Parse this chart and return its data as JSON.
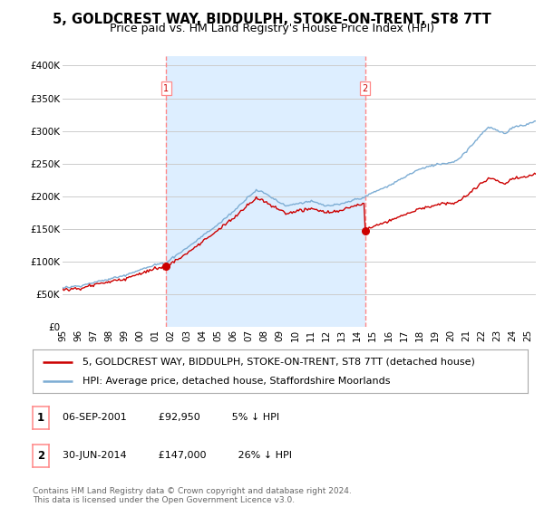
{
  "title": "5, GOLDCREST WAY, BIDDULPH, STOKE-ON-TRENT, ST8 7TT",
  "subtitle": "Price paid vs. HM Land Registry's House Price Index (HPI)",
  "ylabel_ticks": [
    "£0",
    "£50K",
    "£100K",
    "£150K",
    "£200K",
    "£250K",
    "£300K",
    "£350K",
    "£400K"
  ],
  "ytick_values": [
    0,
    50000,
    100000,
    150000,
    200000,
    250000,
    300000,
    350000,
    400000
  ],
  "ylim": [
    0,
    415000
  ],
  "xlim_start": 1995.0,
  "xlim_end": 2025.5,
  "purchase1": {
    "date_x": 2001.67,
    "price": 92950,
    "label": "1"
  },
  "purchase2": {
    "date_x": 2014.5,
    "price": 147000,
    "label": "2"
  },
  "legend_label_red": "5, GOLDCREST WAY, BIDDULPH, STOKE-ON-TRENT, ST8 7TT (detached house)",
  "legend_label_blue": "HPI: Average price, detached house, Staffordshire Moorlands",
  "table_rows": [
    {
      "num": "1",
      "date": "06-SEP-2001",
      "price": "£92,950",
      "pct": "5% ↓ HPI"
    },
    {
      "num": "2",
      "date": "30-JUN-2014",
      "price": "£147,000",
      "pct": "26% ↓ HPI"
    }
  ],
  "footer": "Contains HM Land Registry data © Crown copyright and database right 2024.\nThis data is licensed under the Open Government Licence v3.0.",
  "red_color": "#cc0000",
  "blue_color": "#7dadd4",
  "shade_color": "#ddeeff",
  "grid_color": "#cccccc",
  "vline_color": "#ff8888",
  "bg_color": "#ffffff",
  "title_fontsize": 10.5,
  "subtitle_fontsize": 9,
  "tick_fontsize": 7.5,
  "legend_fontsize": 8,
  "xtick_years": [
    1995,
    1996,
    1997,
    1998,
    1999,
    2000,
    2001,
    2002,
    2003,
    2004,
    2005,
    2006,
    2007,
    2008,
    2009,
    2010,
    2011,
    2012,
    2013,
    2014,
    2015,
    2016,
    2017,
    2018,
    2019,
    2020,
    2021,
    2022,
    2023,
    2024,
    2025
  ]
}
